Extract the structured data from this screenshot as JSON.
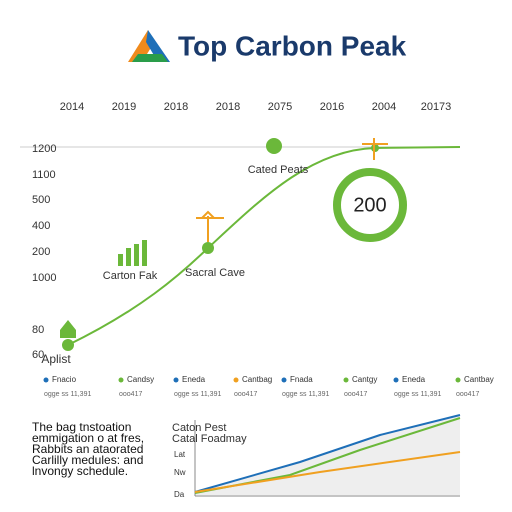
{
  "header": {
    "title": "Top Carbon Peak"
  },
  "top_labels": [
    "2014",
    "2019",
    "2018",
    "2018",
    "2075",
    "2016",
    "2004",
    "20173"
  ],
  "side_labels": [
    "1200",
    "1100",
    "500",
    "400",
    "200",
    "1000",
    "80",
    "60"
  ],
  "annotations": {
    "peak": "Cated Peats",
    "badge": "200",
    "bars": "Carton Fak",
    "crane": "Sacral Cave",
    "start": "Aplist"
  },
  "legend": [
    {
      "name": "Fnacio",
      "note": "ogge ss 11,391"
    },
    {
      "name": "Candsy",
      "note": "ooo417"
    },
    {
      "name": "Eneda",
      "note": "ogge ss 11,391"
    },
    {
      "name": "Cantbag",
      "note": "ooo417"
    },
    {
      "name": "Fnada",
      "note": "ogge ss 11,391"
    },
    {
      "name": "Cantgy",
      "note": "ooo417"
    },
    {
      "name": "Eneda",
      "note": "ogge ss 11,391"
    },
    {
      "name": "Cantbay",
      "note": "ooo417"
    }
  ],
  "body_text": [
    "The bag tnstoation",
    "emmigation o at fres,",
    "Rabbits an ataorated",
    "Carlilly medules: and",
    "lnvongy schedule."
  ],
  "mini_chart": {
    "title": "Caton Pest",
    "subtitle": "Catal Foadmay",
    "labels": [
      "Lat",
      "Nw",
      "Da"
    ]
  }
}
